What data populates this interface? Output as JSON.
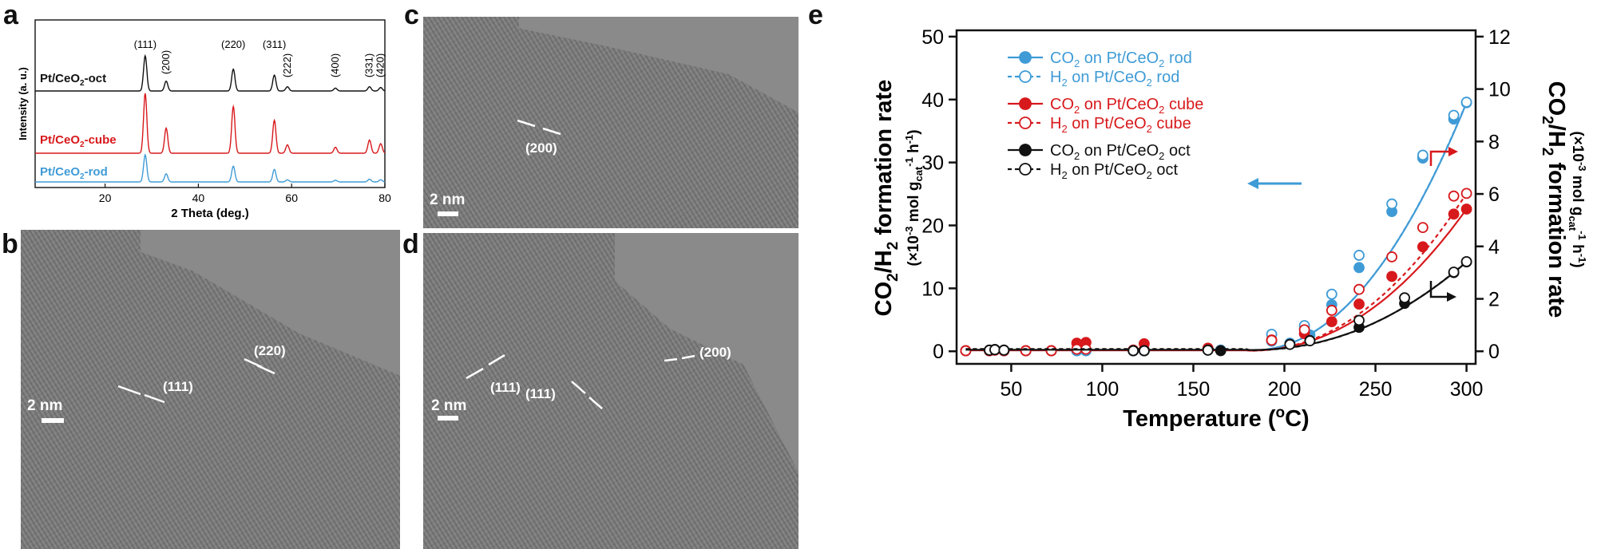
{
  "panels": {
    "a": {
      "letter": "a",
      "chart_data": {
        "type": "line",
        "xlabel": "2 Theta (deg.)",
        "ylabel": "Intensity (a. u.)",
        "xlim": [
          5,
          80
        ],
        "xticks": [
          "20",
          "40",
          "60",
          "80"
        ],
        "series": [
          {
            "name": "Pt/CeO2-oct",
            "color": "#111111",
            "peaks": [
              [
                28.6,
                1.0
              ],
              [
                33.1,
                0.28
              ],
              [
                47.5,
                0.62
              ],
              [
                56.3,
                0.45
              ],
              [
                59.1,
                0.12
              ],
              [
                69.4,
                0.08
              ],
              [
                76.7,
                0.12
              ],
              [
                79.1,
                0.1
              ]
            ]
          },
          {
            "name": "Pt/CeO2-cube",
            "color": "#d7191c",
            "peaks": [
              [
                28.6,
                1.0
              ],
              [
                33.1,
                0.42
              ],
              [
                47.5,
                0.78
              ],
              [
                56.3,
                0.55
              ],
              [
                59.1,
                0.14
              ],
              [
                69.4,
                0.1
              ],
              [
                76.7,
                0.22
              ],
              [
                79.1,
                0.16
              ]
            ]
          },
          {
            "name": "Pt/CeO2-rod",
            "color": "#3f9bd6",
            "peaks": [
              [
                28.6,
                1.0
              ],
              [
                33.1,
                0.3
              ],
              [
                47.5,
                0.58
              ],
              [
                56.3,
                0.46
              ],
              [
                59.1,
                0.08
              ],
              [
                69.4,
                0.06
              ],
              [
                76.7,
                0.1
              ],
              [
                79.1,
                0.08
              ]
            ]
          }
        ],
        "peak_labels": [
          {
            "x": 28.6,
            "text": "(111)"
          },
          {
            "x": 33.1,
            "text": "(200)"
          },
          {
            "x": 47.5,
            "text": "(220)"
          },
          {
            "x": 56.3,
            "text": "(311)"
          },
          {
            "x": 59.1,
            "text": "(222)"
          },
          {
            "x": 69.4,
            "text": "(400)"
          },
          {
            "x": 76.7,
            "text": "(331)"
          },
          {
            "x": 79.1,
            "text": "(420)"
          }
        ]
      },
      "sample_labels": {
        "oct": "Pt/CeO2-oct",
        "cube": "Pt/CeO2-cube",
        "rod": "Pt/CeO2-rod"
      }
    },
    "b": {
      "letter": "b",
      "scale": "2 nm",
      "labels": {
        "l220": "(220)",
        "l111": "(111)"
      }
    },
    "c": {
      "letter": "c",
      "scale": "2 nm",
      "labels": {
        "l200": "(200)"
      }
    },
    "d": {
      "letter": "d",
      "scale": "2 nm",
      "labels": {
        "l111a": "(111)",
        "l200": "(200)",
        "l111b": "(111)"
      }
    },
    "e": {
      "letter": "e",
      "chart_data": {
        "type": "scatter",
        "xlabel": "Temperature (oC)",
        "ylabel_left": "CO2/H2 formation rate",
        "ylabel_left_unit": "(×10-3 mol gcat-1 h-1)",
        "ylabel_right": "CO2/H2 formation rate",
        "ylabel_right_unit": "(×10-3 mol gcat-1 h-1)",
        "xlim": [
          20,
          305
        ],
        "ylim_left": [
          -2,
          51
        ],
        "ylim_right": [
          -0.48,
          12.24
        ],
        "xticks": [
          50,
          100,
          150,
          200,
          250,
          300
        ],
        "yticks_left": [
          0,
          10,
          20,
          30,
          40,
          50
        ],
        "yticks_right": [
          0,
          2,
          4,
          6,
          8,
          10,
          12
        ],
        "series": [
          {
            "name": "CO2 on Pt/CeO2 rod",
            "color": "#3f9bd6",
            "filled": true,
            "dashed": false,
            "axis": "left",
            "points": [
              [
                25,
                0.1
              ],
              [
                38,
                0.1
              ],
              [
                41,
                0.2
              ],
              [
                46,
                0.1
              ],
              [
                58,
                0.1
              ],
              [
                72,
                0.1
              ],
              [
                86,
                0.1
              ],
              [
                91,
                0.1
              ],
              [
                117,
                0.1
              ],
              [
                123,
                0.1
              ],
              [
                158,
                0.2
              ],
              [
                165,
                0.2
              ],
              [
                193,
                1.6
              ],
              [
                203,
                1.3
              ],
              [
                211,
                3.6
              ],
              [
                214,
                2.6
              ],
              [
                226,
                7.4
              ],
              [
                241,
                13.3
              ],
              [
                259,
                22.2
              ],
              [
                276,
                30.7
              ],
              [
                293,
                36.9
              ],
              [
                300,
                39.5
              ]
            ]
          },
          {
            "name": "H2 on Pt/CeO2 rod",
            "color": "#3f9bd6",
            "filled": false,
            "dashed": true,
            "axis": "right",
            "points": [
              [
                25,
                0.02
              ],
              [
                38,
                0.02
              ],
              [
                41,
                0.04
              ],
              [
                46,
                0.02
              ],
              [
                58,
                0.02
              ],
              [
                72,
                0.02
              ],
              [
                86,
                0.02
              ],
              [
                91,
                0.02
              ],
              [
                117,
                0.02
              ],
              [
                123,
                0.02
              ],
              [
                158,
                0.04
              ],
              [
                193,
                0.65
              ],
              [
                211,
                0.98
              ],
              [
                226,
                2.18
              ],
              [
                241,
                3.66
              ],
              [
                259,
                5.62
              ],
              [
                276,
                7.48
              ],
              [
                293,
                9.0
              ],
              [
                300,
                9.5
              ]
            ]
          },
          {
            "name": "CO2 on Pt/CeO2 cube",
            "color": "#d7191c",
            "filled": true,
            "dashed": false,
            "axis": "left",
            "points": [
              [
                25,
                0.1
              ],
              [
                38,
                0.1
              ],
              [
                41,
                0.2
              ],
              [
                46,
                0.1
              ],
              [
                58,
                0.1
              ],
              [
                72,
                0.1
              ],
              [
                86,
                1.3
              ],
              [
                91,
                1.4
              ],
              [
                117,
                0.2
              ],
              [
                123,
                1.2
              ],
              [
                158,
                0.5
              ],
              [
                193,
                1.8
              ],
              [
                211,
                2.8
              ],
              [
                226,
                4.7
              ],
              [
                241,
                7.5
              ],
              [
                259,
                11.9
              ],
              [
                276,
                16.6
              ],
              [
                293,
                21.8
              ],
              [
                300,
                22.6
              ]
            ]
          },
          {
            "name": "H2 on Pt/CeO2 cube",
            "color": "#d7191c",
            "filled": false,
            "dashed": true,
            "axis": "right",
            "points": [
              [
                25,
                0.02
              ],
              [
                38,
                0.02
              ],
              [
                41,
                0.04
              ],
              [
                46,
                0.02
              ],
              [
                58,
                0.02
              ],
              [
                72,
                0.02
              ],
              [
                86,
                0.08
              ],
              [
                91,
                0.08
              ],
              [
                117,
                0.04
              ],
              [
                123,
                0.06
              ],
              [
                158,
                0.1
              ],
              [
                193,
                0.42
              ],
              [
                211,
                0.82
              ],
              [
                226,
                1.56
              ],
              [
                241,
                2.36
              ],
              [
                259,
                3.6
              ],
              [
                276,
                4.72
              ],
              [
                293,
                5.92
              ],
              [
                300,
                6.02
              ]
            ]
          },
          {
            "name": "CO2 on Pt/CeO2 oct",
            "color": "#111111",
            "filled": true,
            "dashed": false,
            "axis": "left",
            "points": [
              [
                38,
                0.2
              ],
              [
                41,
                0.3
              ],
              [
                46,
                0.2
              ],
              [
                117,
                0.1
              ],
              [
                123,
                0.1
              ],
              [
                158,
                0.2
              ],
              [
                165,
                0.1
              ],
              [
                203,
                1.1
              ],
              [
                214,
                1.7
              ],
              [
                241,
                3.8
              ],
              [
                266,
                7.6
              ],
              [
                293,
                12.5
              ],
              [
                300,
                14.2
              ]
            ]
          },
          {
            "name": "H2 on Pt/CeO2 oct",
            "color": "#111111",
            "filled": false,
            "dashed": true,
            "axis": "right",
            "points": [
              [
                38,
                0.04
              ],
              [
                41,
                0.06
              ],
              [
                46,
                0.04
              ],
              [
                117,
                0.02
              ],
              [
                123,
                0.02
              ],
              [
                158,
                0.04
              ],
              [
                203,
                0.26
              ],
              [
                214,
                0.4
              ],
              [
                241,
                1.18
              ],
              [
                266,
                2.04
              ],
              [
                293,
                3.02
              ],
              [
                300,
                3.42
              ]
            ]
          }
        ],
        "legend_placement": "top-left"
      }
    }
  }
}
